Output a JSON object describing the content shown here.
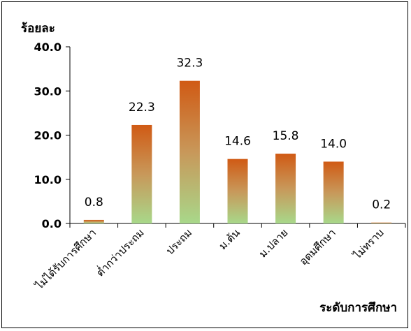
{
  "chart_data": {
    "type": "bar",
    "ylabel": "ร้อยละ",
    "xlabel": "ระดับการศึกษา",
    "categories": [
      "ไม่ได้รับการศึกษา",
      "ต่ำกว่าประถม",
      "ประถม",
      "ม.ต้น",
      "ม.ปลาย",
      "อุดมศึกษา",
      "ไม่ทราบ"
    ],
    "values": [
      0.8,
      22.3,
      32.3,
      14.6,
      15.8,
      14.0,
      0.2
    ],
    "value_labels": [
      "0.8",
      "22.3",
      "32.3",
      "14.6",
      "15.8",
      "14.0",
      "0.2"
    ],
    "yticks": [
      "0.0",
      "10.0",
      "20.0",
      "30.0",
      "40.0"
    ],
    "ylim": [
      0,
      40
    ],
    "grid": false,
    "legend": "none",
    "bar_gradient": {
      "top": "#d05a14",
      "middle": "#c8985a",
      "bottom": "#a8d88a"
    }
  }
}
